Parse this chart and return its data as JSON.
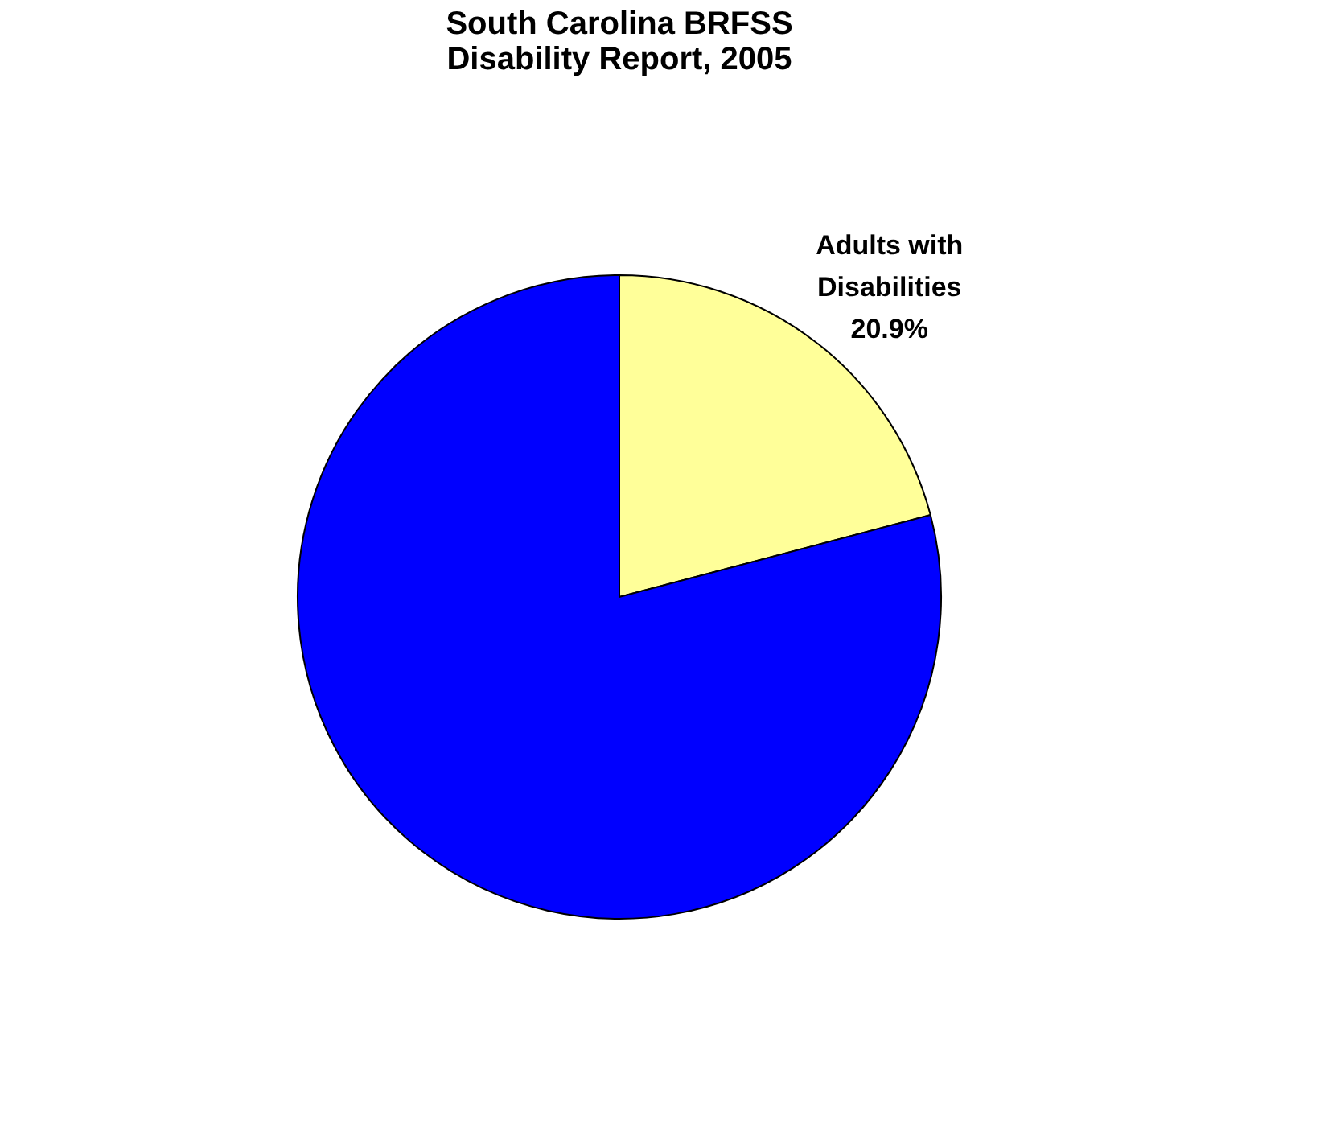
{
  "chart_data": {
    "type": "pie",
    "title": "South Carolina BRFSS Disability Report, 2005",
    "categories": [
      "Adults with Disabilities",
      null
    ],
    "values": [
      20.9,
      79.1
    ],
    "colors": [
      "#ffff99",
      "#0000ff"
    ],
    "value_labels": [
      "20.9%",
      null
    ],
    "legend": false
  }
}
